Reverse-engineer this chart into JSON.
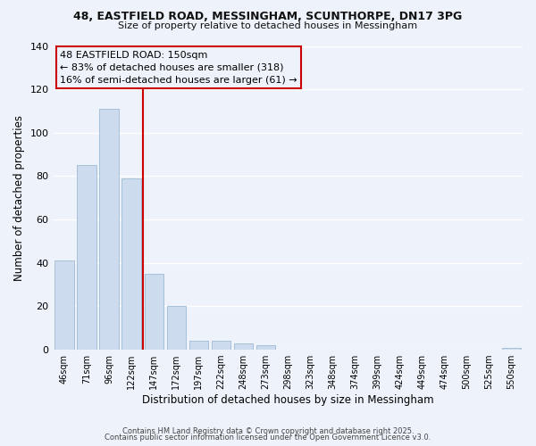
{
  "title_line1": "48, EASTFIELD ROAD, MESSINGHAM, SCUNTHORPE, DN17 3PG",
  "title_line2": "Size of property relative to detached houses in Messingham",
  "xlabel": "Distribution of detached houses by size in Messingham",
  "ylabel": "Number of detached properties",
  "bar_labels": [
    "46sqm",
    "71sqm",
    "96sqm",
    "122sqm",
    "147sqm",
    "172sqm",
    "197sqm",
    "222sqm",
    "248sqm",
    "273sqm",
    "298sqm",
    "323sqm",
    "348sqm",
    "374sqm",
    "399sqm",
    "424sqm",
    "449sqm",
    "474sqm",
    "500sqm",
    "525sqm",
    "550sqm"
  ],
  "bar_values": [
    41,
    85,
    111,
    79,
    35,
    20,
    4,
    4,
    3,
    2,
    0,
    0,
    0,
    0,
    0,
    0,
    0,
    0,
    0,
    0,
    1
  ],
  "bar_color": "#ccdcee",
  "bar_edge_color": "#a8c0d8",
  "vline_color": "#cc0000",
  "ylim": [
    0,
    140
  ],
  "yticks": [
    0,
    20,
    40,
    60,
    80,
    100,
    120,
    140
  ],
  "annotation_title": "48 EASTFIELD ROAD: 150sqm",
  "annotation_line1": "← 83% of detached houses are smaller (318)",
  "annotation_line2": "16% of semi-detached houses are larger (61) →",
  "footer_line1": "Contains HM Land Registry data © Crown copyright and database right 2025.",
  "footer_line2": "Contains public sector information licensed under the Open Government Licence v3.0.",
  "bg_color": "#eef2fa",
  "grid_color": "#ffffff"
}
